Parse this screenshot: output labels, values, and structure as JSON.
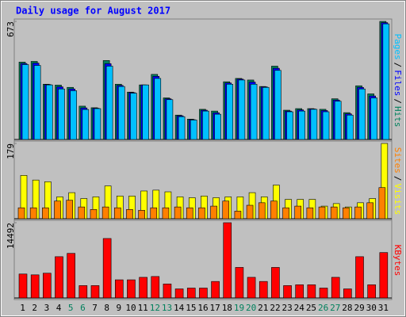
{
  "chart_data": [
    {
      "type": "bar",
      "title": "Daily usage for August 2017",
      "ylim": [
        0,
        673
      ],
      "yticks": [
        673
      ],
      "legend_separator": "/",
      "series": [
        {
          "name": "Hits",
          "color": "#00805c",
          "values": [
            441,
            445,
            315,
            310,
            297,
            190,
            181,
            450,
            315,
            270,
            311,
            371,
            237,
            139,
            116,
            172,
            162,
            329,
            348,
            339,
            302,
            418,
            167,
            176,
            176,
            172,
            232,
            153,
            306,
            260,
            673
          ]
        },
        {
          "name": "Files",
          "color": "#0000ff",
          "values": [
            433,
            435,
            313,
            300,
            288,
            180,
            178,
            432,
            308,
            267,
            311,
            360,
            232,
            135,
            113,
            167,
            152,
            322,
            344,
            327,
            300,
            406,
            162,
            169,
            174,
            165,
            225,
            146,
            297,
            248,
            666
          ]
        },
        {
          "name": "Pages",
          "color": "#00c0ff",
          "values": [
            427,
            422,
            311,
            288,
            278,
            171,
            176,
            418,
            302,
            264,
            311,
            348,
            227,
            130,
            111,
            162,
            144,
            315,
            339,
            315,
            297,
            394,
            158,
            162,
            172,
            158,
            218,
            139,
            288,
            237,
            659
          ]
        }
      ]
    },
    {
      "type": "bar",
      "ylim": [
        0,
        179
      ],
      "yticks": [
        179
      ],
      "legend_separator": "/",
      "series": [
        {
          "name": "Visits",
          "color": "#ffff00",
          "values": [
            103,
            92,
            88,
            52,
            62,
            48,
            52,
            78,
            54,
            54,
            66,
            68,
            64,
            52,
            50,
            54,
            50,
            52,
            52,
            62,
            52,
            80,
            46,
            46,
            46,
            30,
            36,
            28,
            38,
            48,
            179
          ]
        },
        {
          "name": "Sites",
          "color": "#ff8000",
          "values": [
            26,
            26,
            26,
            42,
            44,
            28,
            22,
            28,
            26,
            22,
            20,
            26,
            26,
            28,
            26,
            26,
            30,
            42,
            18,
            32,
            38,
            42,
            26,
            30,
            26,
            28,
            28,
            26,
            28,
            38,
            74
          ]
        }
      ]
    },
    {
      "type": "bar",
      "ylim": [
        0,
        14492
      ],
      "yticks": [
        14492
      ],
      "categories": [
        "1",
        "2",
        "3",
        "4",
        "5",
        "6",
        "7",
        "8",
        "9",
        "10",
        "11",
        "12",
        "13",
        "14",
        "15",
        "16",
        "17",
        "18",
        "19",
        "20",
        "21",
        "22",
        "23",
        "24",
        "25",
        "26",
        "27",
        "28",
        "29",
        "30",
        "31"
      ],
      "category_colors": [
        "#000000",
        "#000000",
        "#000000",
        "#000000",
        "#00805c",
        "#00805c",
        "#000000",
        "#000000",
        "#000000",
        "#000000",
        "#000000",
        "#00805c",
        "#00805c",
        "#000000",
        "#000000",
        "#000000",
        "#000000",
        "#000000",
        "#00805c",
        "#00805c",
        "#000000",
        "#000000",
        "#000000",
        "#000000",
        "#000000",
        "#00805c",
        "#00805c",
        "#000000",
        "#000000",
        "#000000",
        "#000000"
      ],
      "series": [
        {
          "name": "KBytes",
          "color": "#ff0000",
          "values": [
            4611,
            4452,
            4770,
            7950,
            8586,
            2385,
            2385,
            11448,
            3498,
            3498,
            3975,
            4134,
            2703,
            1749,
            1908,
            1908,
            3180,
            14492,
            5883,
            3975,
            3180,
            5883,
            2385,
            2544,
            2544,
            1908,
            3975,
            1749,
            7950,
            2544,
            8745
          ]
        }
      ]
    }
  ]
}
